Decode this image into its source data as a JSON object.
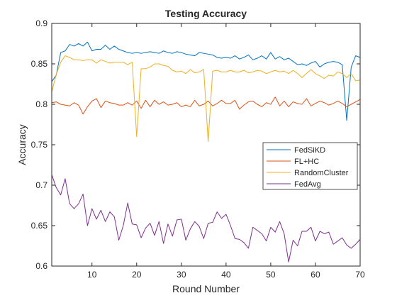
{
  "chart_data": {
    "type": "line",
    "title": "Testing Accuracy",
    "xlabel": "Round Number",
    "ylabel": "Accuracy",
    "xlim": [
      1,
      70
    ],
    "ylim": [
      0.6,
      0.9
    ],
    "xticks": [
      10,
      20,
      30,
      40,
      50,
      60,
      70
    ],
    "yticks": [
      0.6,
      0.65,
      0.7,
      0.75,
      0.8,
      0.85,
      0.9
    ],
    "xtick_labels": [
      "10",
      "20",
      "30",
      "40",
      "50",
      "60",
      "70"
    ],
    "ytick_labels": [
      "0.6",
      "0.65",
      "0.7",
      "0.75",
      "0.8",
      "0.85",
      "0.9"
    ],
    "grid": false,
    "legend_position": "middle-right",
    "x": [
      1,
      2,
      3,
      4,
      5,
      6,
      7,
      8,
      9,
      10,
      11,
      12,
      13,
      14,
      15,
      16,
      17,
      18,
      19,
      20,
      21,
      22,
      23,
      24,
      25,
      26,
      27,
      28,
      29,
      30,
      31,
      32,
      33,
      34,
      35,
      36,
      37,
      38,
      39,
      40,
      41,
      42,
      43,
      44,
      45,
      46,
      47,
      48,
      49,
      50,
      51,
      52,
      53,
      54,
      55,
      56,
      57,
      58,
      59,
      60,
      61,
      62,
      63,
      64,
      65,
      66,
      67,
      68,
      69,
      70
    ],
    "series": [
      {
        "name": "FedSiKD",
        "color": "#0072BD",
        "values": [
          0.828,
          0.836,
          0.864,
          0.866,
          0.874,
          0.872,
          0.875,
          0.872,
          0.877,
          0.866,
          0.868,
          0.868,
          0.873,
          0.868,
          0.872,
          0.868,
          0.866,
          0.864,
          0.863,
          0.864,
          0.863,
          0.864,
          0.865,
          0.864,
          0.863,
          0.866,
          0.864,
          0.863,
          0.865,
          0.864,
          0.862,
          0.861,
          0.86,
          0.864,
          0.863,
          0.862,
          0.861,
          0.858,
          0.857,
          0.858,
          0.857,
          0.86,
          0.856,
          0.858,
          0.861,
          0.855,
          0.857,
          0.86,
          0.856,
          0.864,
          0.856,
          0.859,
          0.855,
          0.857,
          0.853,
          0.849,
          0.85,
          0.848,
          0.851,
          0.853,
          0.846,
          0.85,
          0.852,
          0.853,
          0.852,
          0.849,
          0.78,
          0.846,
          0.86,
          0.858
        ]
      },
      {
        "name": "FL+HC",
        "color": "#D95319",
        "values": [
          0.802,
          0.803,
          0.8,
          0.799,
          0.798,
          0.802,
          0.799,
          0.788,
          0.797,
          0.804,
          0.807,
          0.796,
          0.804,
          0.802,
          0.801,
          0.799,
          0.799,
          0.802,
          0.799,
          0.804,
          0.795,
          0.805,
          0.797,
          0.805,
          0.8,
          0.803,
          0.799,
          0.8,
          0.802,
          0.797,
          0.799,
          0.797,
          0.805,
          0.798,
          0.8,
          0.804,
          0.798,
          0.801,
          0.805,
          0.801,
          0.801,
          0.805,
          0.794,
          0.799,
          0.803,
          0.804,
          0.8,
          0.797,
          0.802,
          0.8,
          0.809,
          0.798,
          0.804,
          0.797,
          0.803,
          0.801,
          0.8,
          0.807,
          0.798,
          0.801,
          0.804,
          0.802,
          0.799,
          0.801,
          0.804,
          0.801,
          0.797,
          0.8,
          0.803,
          0.806
        ]
      },
      {
        "name": "RandomCluster",
        "color": "#EDB120",
        "values": [
          0.815,
          0.837,
          0.852,
          0.86,
          0.858,
          0.855,
          0.855,
          0.854,
          0.855,
          0.855,
          0.851,
          0.855,
          0.853,
          0.851,
          0.852,
          0.852,
          0.852,
          0.849,
          0.852,
          0.76,
          0.844,
          0.844,
          0.846,
          0.85,
          0.85,
          0.848,
          0.847,
          0.842,
          0.84,
          0.841,
          0.838,
          0.843,
          0.839,
          0.84,
          0.843,
          0.754,
          0.841,
          0.842,
          0.84,
          0.84,
          0.842,
          0.84,
          0.84,
          0.842,
          0.839,
          0.84,
          0.842,
          0.841,
          0.838,
          0.84,
          0.842,
          0.84,
          0.841,
          0.838,
          0.842,
          0.838,
          0.833,
          0.838,
          0.843,
          0.838,
          0.835,
          0.832,
          0.836,
          0.835,
          0.84,
          0.838,
          0.833,
          0.838,
          0.829,
          0.83
        ]
      },
      {
        "name": "FedAvg",
        "color": "#7E2F8E",
        "values": [
          0.713,
          0.697,
          0.688,
          0.708,
          0.677,
          0.671,
          0.677,
          0.689,
          0.65,
          0.671,
          0.658,
          0.669,
          0.655,
          0.667,
          0.661,
          0.632,
          0.65,
          0.678,
          0.652,
          0.651,
          0.635,
          0.647,
          0.653,
          0.638,
          0.655,
          0.628,
          0.652,
          0.637,
          0.657,
          0.658,
          0.632,
          0.646,
          0.655,
          0.649,
          0.634,
          0.653,
          0.654,
          0.667,
          0.659,
          0.664,
          0.65,
          0.634,
          0.633,
          0.629,
          0.622,
          0.648,
          0.644,
          0.64,
          0.631,
          0.648,
          0.642,
          0.655,
          0.64,
          0.605,
          0.632,
          0.625,
          0.643,
          0.643,
          0.648,
          0.631,
          0.643,
          0.64,
          0.642,
          0.627,
          0.631,
          0.635,
          0.626,
          0.622,
          0.627,
          0.633
        ]
      }
    ]
  }
}
